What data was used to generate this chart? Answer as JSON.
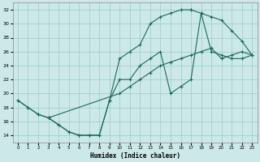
{
  "xlabel": "Humidex (Indice chaleur)",
  "bg_color": "#cce8e8",
  "grid_color": "#99cccc",
  "line_color": "#1a6b5a",
  "xlim": [
    -0.5,
    23.5
  ],
  "ylim": [
    13.0,
    33.0
  ],
  "xticks": [
    0,
    1,
    2,
    3,
    4,
    5,
    6,
    7,
    8,
    9,
    10,
    11,
    12,
    13,
    14,
    15,
    16,
    17,
    18,
    19,
    20,
    21,
    22,
    23
  ],
  "yticks": [
    14,
    16,
    18,
    20,
    22,
    24,
    26,
    28,
    30,
    32
  ],
  "curve_A_x": [
    0,
    1,
    2,
    3,
    4,
    5,
    6,
    7,
    8,
    9,
    10,
    11,
    12,
    13,
    14,
    15,
    16,
    17
  ],
  "curve_A_y": [
    19,
    18,
    17,
    16.5,
    15.5,
    14.5,
    14,
    14,
    14,
    19,
    25,
    26,
    27,
    30,
    31,
    31.5,
    32,
    32
  ],
  "curve_B_x": [
    17,
    18,
    19,
    20,
    21,
    22,
    23
  ],
  "curve_B_y": [
    32,
    31.5,
    31,
    30.5,
    29,
    27.5,
    25.5
  ],
  "curve_C_x": [
    3,
    4,
    5,
    6,
    7,
    8,
    9,
    10,
    11,
    12,
    13,
    14,
    15,
    16,
    17,
    18,
    19,
    20,
    21,
    22,
    23
  ],
  "curve_C_y": [
    16.5,
    15.5,
    14.5,
    14,
    14,
    14,
    19,
    22,
    22,
    24,
    25,
    26,
    20,
    21,
    22,
    31.5,
    26,
    25.5,
    25,
    25,
    25.5
  ],
  "curve_D_x": [
    0,
    1,
    2,
    3,
    10,
    11,
    12,
    13,
    14,
    15,
    16,
    17,
    18,
    19,
    20,
    21,
    22,
    23
  ],
  "curve_D_y": [
    19,
    18,
    17,
    16.5,
    20,
    21,
    22,
    23,
    24,
    24.5,
    25,
    25.5,
    26,
    26.5,
    25,
    25.5,
    26,
    25.5
  ]
}
